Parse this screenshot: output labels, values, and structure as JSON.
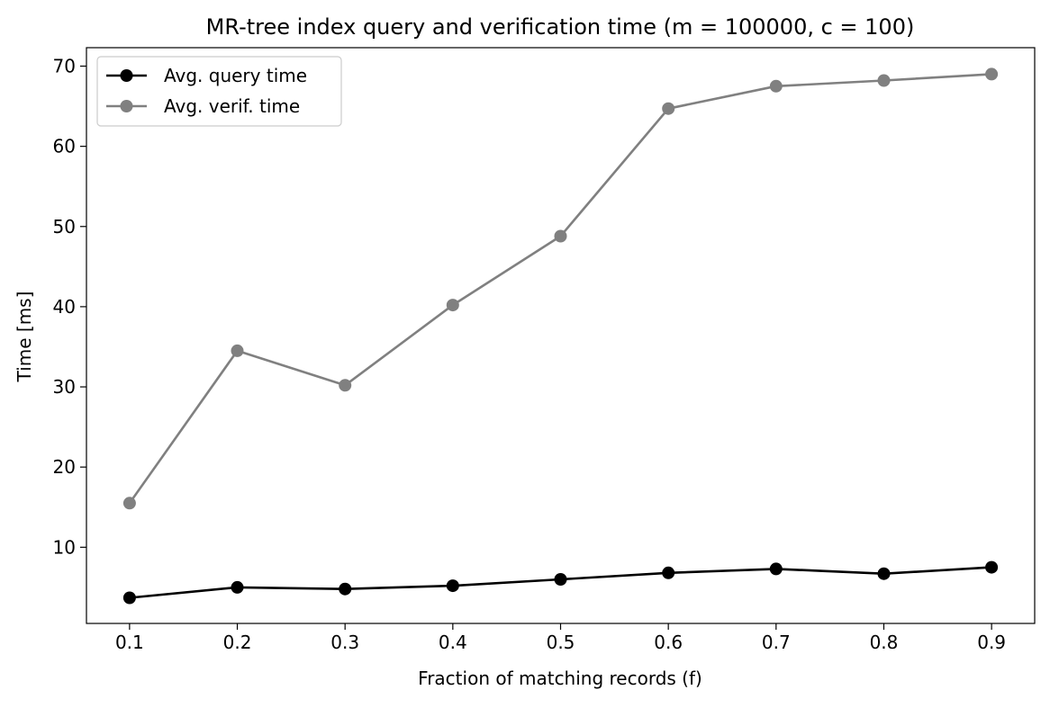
{
  "chart_data": {
    "type": "line",
    "title": "MR-tree index query and verification time (m = 100000, c = 100)",
    "xlabel": "Fraction of matching records (f)",
    "ylabel": "Time [ms]",
    "x": [
      0.1,
      0.2,
      0.3,
      0.4,
      0.5,
      0.6,
      0.7,
      0.8,
      0.9
    ],
    "xticks": [
      0.1,
      0.2,
      0.3,
      0.4,
      0.5,
      0.6,
      0.7,
      0.8,
      0.9
    ],
    "xtick_labels": [
      "0.1",
      "0.2",
      "0.3",
      "0.4",
      "0.5",
      "0.6",
      "0.7",
      "0.8",
      "0.9"
    ],
    "yticks": [
      10,
      20,
      30,
      40,
      50,
      60,
      70
    ],
    "ytick_labels": [
      "10",
      "20",
      "30",
      "40",
      "50",
      "60",
      "70"
    ],
    "xlim": [
      0.06,
      0.94
    ],
    "ylim": [
      0.5,
      72.3
    ],
    "grid": false,
    "legend_position": "top-left",
    "series": [
      {
        "name": "Avg. query time",
        "color": "#000000",
        "marker": "circle",
        "values": [
          3.7,
          5.0,
          4.8,
          5.2,
          6.0,
          6.8,
          7.3,
          6.7,
          7.5
        ]
      },
      {
        "name": "Avg. verif. time",
        "color": "#808080",
        "marker": "circle",
        "values": [
          15.5,
          34.5,
          30.2,
          40.2,
          48.8,
          64.7,
          67.5,
          68.2,
          69.0
        ]
      }
    ]
  }
}
